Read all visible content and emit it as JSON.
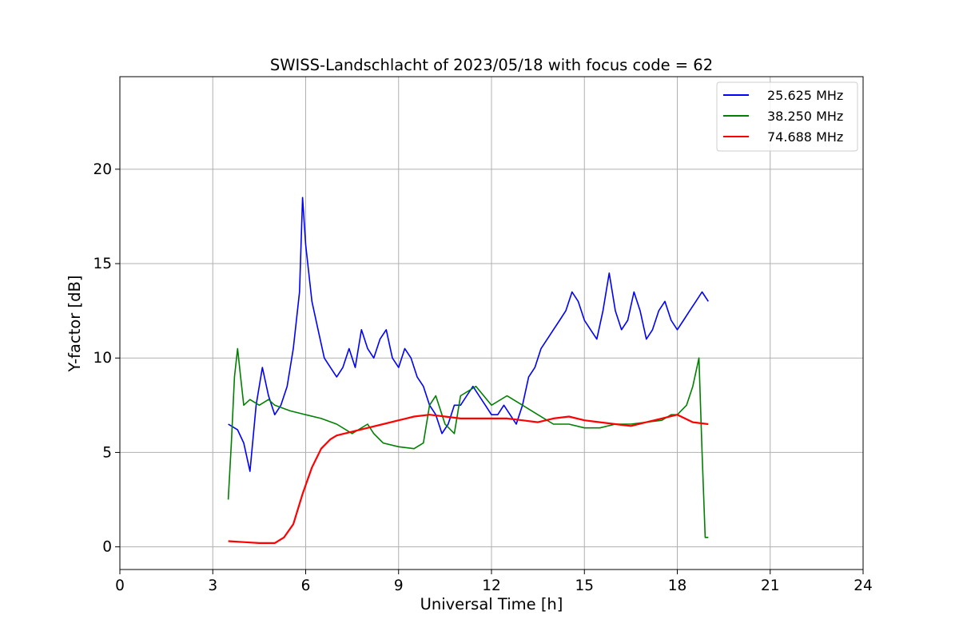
{
  "chart_data": {
    "type": "line",
    "title": "SWISS-Landschlacht of 2023/05/18 with focus code = 62",
    "xlabel": "Universal Time [h]",
    "ylabel": "Y-factor [dB]",
    "xlim": [
      0,
      24
    ],
    "ylim": [
      -1.2,
      24.9
    ],
    "xticks": [
      0,
      3,
      6,
      9,
      12,
      15,
      18,
      21,
      24
    ],
    "xtick_labels": [
      "0",
      "3",
      "6",
      "9",
      "12",
      "15",
      "18",
      "21",
      "24"
    ],
    "yticks": [
      0,
      5,
      10,
      15,
      20
    ],
    "ytick_labels": [
      "0",
      "5",
      "10",
      "15",
      "20"
    ],
    "grid": true,
    "legend_position": "top-right",
    "series": [
      {
        "name": "25.625 MHz",
        "color": "#0000ff",
        "x": [
          3.5,
          3.8,
          4.0,
          4.2,
          4.4,
          4.6,
          4.8,
          5.0,
          5.2,
          5.4,
          5.6,
          5.8,
          5.9,
          6.0,
          6.2,
          6.4,
          6.6,
          6.8,
          7.0,
          7.2,
          7.4,
          7.6,
          7.8,
          8.0,
          8.2,
          8.4,
          8.6,
          8.8,
          9.0,
          9.2,
          9.4,
          9.6,
          9.8,
          10.0,
          10.2,
          10.4,
          10.6,
          10.8,
          11.0,
          11.2,
          11.4,
          11.6,
          11.8,
          12.0,
          12.2,
          12.4,
          12.6,
          12.8,
          13.0,
          13.2,
          13.4,
          13.6,
          13.8,
          14.0,
          14.2,
          14.4,
          14.6,
          14.8,
          15.0,
          15.2,
          15.4,
          15.6,
          15.8,
          16.0,
          16.2,
          16.4,
          16.6,
          16.8,
          17.0,
          17.2,
          17.4,
          17.6,
          17.8,
          18.0,
          18.2,
          18.4,
          18.6,
          18.8,
          19.0
        ],
        "y": [
          6.5,
          6.2,
          5.5,
          4.0,
          7.5,
          9.5,
          8.0,
          7.0,
          7.5,
          8.5,
          10.5,
          13.5,
          18.5,
          16.0,
          13.0,
          11.5,
          10.0,
          9.5,
          9.0,
          9.5,
          10.5,
          9.5,
          11.5,
          10.5,
          10.0,
          11.0,
          11.5,
          10.0,
          9.5,
          10.5,
          10.0,
          9.0,
          8.5,
          7.5,
          7.0,
          6.0,
          6.5,
          7.5,
          7.5,
          8.0,
          8.5,
          8.0,
          7.5,
          7.0,
          7.0,
          7.5,
          7.0,
          6.5,
          7.5,
          9.0,
          9.5,
          10.5,
          11.0,
          11.5,
          12.0,
          12.5,
          13.5,
          13.0,
          12.0,
          11.5,
          11.0,
          12.5,
          14.5,
          12.5,
          11.5,
          12.0,
          13.5,
          12.5,
          11.0,
          11.5,
          12.5,
          13.0,
          12.0,
          11.5,
          12.0,
          12.5,
          13.0,
          13.5,
          13.0
        ]
      },
      {
        "name": "38.250 MHz",
        "color": "#008000",
        "x": [
          3.5,
          3.6,
          3.7,
          3.8,
          3.9,
          4.0,
          4.2,
          4.5,
          4.8,
          5.0,
          5.5,
          6.0,
          6.5,
          7.0,
          7.5,
          8.0,
          8.2,
          8.5,
          9.0,
          9.5,
          9.8,
          10.0,
          10.2,
          10.5,
          10.8,
          11.0,
          11.5,
          12.0,
          12.5,
          13.0,
          13.5,
          14.0,
          14.5,
          15.0,
          15.5,
          16.0,
          16.5,
          17.0,
          17.5,
          17.8,
          18.0,
          18.3,
          18.5,
          18.7,
          18.8,
          18.9,
          19.0
        ],
        "y": [
          2.5,
          5.5,
          9.0,
          10.5,
          9.0,
          7.5,
          7.8,
          7.5,
          7.8,
          7.5,
          7.2,
          7.0,
          6.8,
          6.5,
          6.0,
          6.5,
          6.0,
          5.5,
          5.3,
          5.2,
          5.5,
          7.5,
          8.0,
          6.5,
          6.0,
          8.0,
          8.5,
          7.5,
          8.0,
          7.5,
          7.0,
          6.5,
          6.5,
          6.3,
          6.3,
          6.5,
          6.5,
          6.6,
          6.7,
          7.0,
          7.0,
          7.5,
          8.5,
          10.0,
          5.0,
          0.5,
          0.5
        ]
      },
      {
        "name": "74.688 MHz",
        "color": "#ff0000",
        "x": [
          3.5,
          4.0,
          4.5,
          5.0,
          5.3,
          5.6,
          5.9,
          6.2,
          6.5,
          6.8,
          7.0,
          7.5,
          8.0,
          8.5,
          9.0,
          9.5,
          10.0,
          10.5,
          11.0,
          11.5,
          12.0,
          12.5,
          13.0,
          13.5,
          14.0,
          14.5,
          15.0,
          15.5,
          16.0,
          16.5,
          17.0,
          17.5,
          18.0,
          18.5,
          19.0
        ],
        "y": [
          0.3,
          0.25,
          0.2,
          0.2,
          0.5,
          1.2,
          2.8,
          4.2,
          5.2,
          5.7,
          5.9,
          6.1,
          6.3,
          6.5,
          6.7,
          6.9,
          7.0,
          6.9,
          6.8,
          6.8,
          6.8,
          6.8,
          6.7,
          6.6,
          6.8,
          6.9,
          6.7,
          6.6,
          6.5,
          6.4,
          6.6,
          6.8,
          7.0,
          6.6,
          6.5
        ]
      }
    ]
  }
}
